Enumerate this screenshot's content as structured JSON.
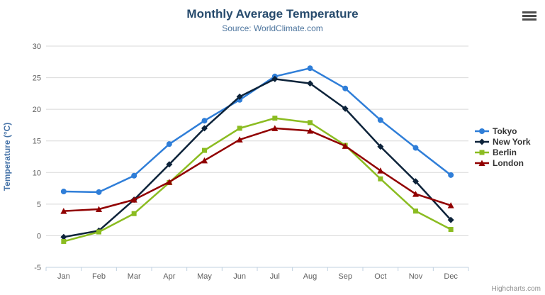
{
  "header": {
    "title": "Monthly Average Temperature",
    "subtitle": "Source: WorldClimate.com"
  },
  "credit": {
    "label": "Highcharts.com"
  },
  "menu_icon": "hamburger-icon",
  "palette": {
    "grid": "#d8d8d8",
    "axis_line": "#c0d0e0",
    "tick_label": "#606060",
    "title": "#274b6d",
    "subtitle": "#4d759e",
    "y_axis_title": "#4572a7",
    "legend_text": "#333333",
    "credit": "#909090"
  },
  "chart_data": {
    "type": "line",
    "title": "Monthly Average Temperature",
    "subtitle": "Source: WorldClimate.com",
    "xlabel": "",
    "ylabel": "Temperature (°C)",
    "ylim": [
      -5,
      30
    ],
    "yticks": [
      -5,
      0,
      5,
      10,
      15,
      20,
      25,
      30
    ],
    "grid": "horizontal",
    "legend_position": "right",
    "categories": [
      "Jan",
      "Feb",
      "Mar",
      "Apr",
      "May",
      "Jun",
      "Jul",
      "Aug",
      "Sep",
      "Oct",
      "Nov",
      "Dec"
    ],
    "series": [
      {
        "name": "Tokyo",
        "color": "#2f7ed8",
        "marker": "circle",
        "values": [
          7.0,
          6.9,
          9.5,
          14.5,
          18.2,
          21.5,
          25.2,
          26.5,
          23.3,
          18.3,
          13.9,
          9.6
        ]
      },
      {
        "name": "New York",
        "color": "#0d233a",
        "marker": "diamond",
        "values": [
          -0.2,
          0.8,
          5.7,
          11.3,
          17.0,
          22.0,
          24.8,
          24.1,
          20.1,
          14.1,
          8.6,
          2.5
        ]
      },
      {
        "name": "Berlin",
        "color": "#8bbc21",
        "marker": "square",
        "values": [
          -0.9,
          0.6,
          3.5,
          8.4,
          13.5,
          17.0,
          18.6,
          17.9,
          14.3,
          9.0,
          3.9,
          1.0
        ]
      },
      {
        "name": "London",
        "color": "#910000",
        "marker": "triangle",
        "values": [
          3.9,
          4.2,
          5.7,
          8.5,
          11.9,
          15.2,
          17.0,
          16.6,
          14.2,
          10.3,
          6.6,
          4.8
        ]
      }
    ]
  }
}
